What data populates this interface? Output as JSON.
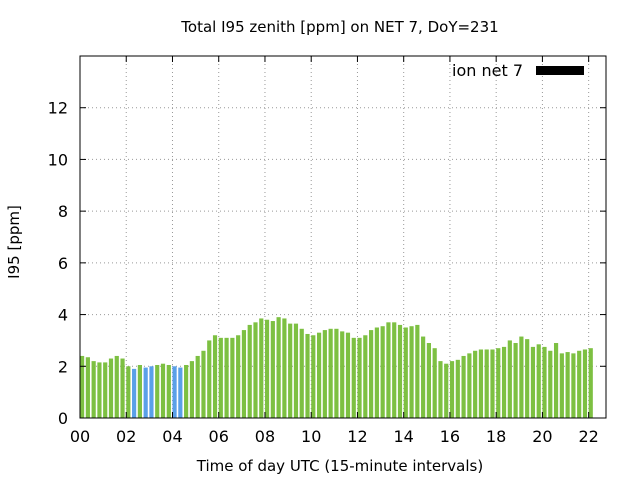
{
  "chart_data": {
    "type": "bar",
    "title": "Total I95 zenith [ppm] on NET 7, DoY=231",
    "xlabel": "Time of day UTC (15-minute intervals)",
    "ylabel": "I95 [ppm]",
    "xlim": [
      0,
      22.75
    ],
    "ylim": [
      0,
      14
    ],
    "x_ticks": [
      "00",
      "02",
      "04",
      "06",
      "08",
      "10",
      "12",
      "14",
      "16",
      "18",
      "20",
      "22"
    ],
    "y_ticks": [
      "0",
      "2",
      "4",
      "6",
      "8",
      "10",
      "12"
    ],
    "grid": true,
    "legend": {
      "label": "ion net 7",
      "position": "top-right"
    },
    "colors": {
      "normal": "#7dc042",
      "highlight": "#5aa0e8",
      "legend_swatch": "#000000"
    },
    "values": [
      2.4,
      2.35,
      2.2,
      2.15,
      2.15,
      2.3,
      2.4,
      2.3,
      2.0,
      1.9,
      2.05,
      1.95,
      2.0,
      2.05,
      2.1,
      2.05,
      2.0,
      1.95,
      2.05,
      2.2,
      2.4,
      2.6,
      3.0,
      3.2,
      3.1,
      3.1,
      3.1,
      3.2,
      3.4,
      3.6,
      3.7,
      3.85,
      3.8,
      3.75,
      3.9,
      3.85,
      3.65,
      3.65,
      3.45,
      3.25,
      3.2,
      3.3,
      3.4,
      3.45,
      3.45,
      3.35,
      3.3,
      3.1,
      3.1,
      3.2,
      3.4,
      3.5,
      3.55,
      3.7,
      3.7,
      3.6,
      3.5,
      3.55,
      3.6,
      3.15,
      2.9,
      2.7,
      2.2,
      2.1,
      2.2,
      2.25,
      2.4,
      2.5,
      2.6,
      2.65,
      2.65,
      2.65,
      2.7,
      2.75,
      3.0,
      2.9,
      3.15,
      3.05,
      2.75,
      2.85,
      2.75,
      2.6,
      2.9,
      2.5,
      2.55,
      2.5,
      2.6,
      2.65,
      2.7
    ],
    "highlighted_indices": [
      9,
      11,
      12,
      16,
      17
    ]
  }
}
